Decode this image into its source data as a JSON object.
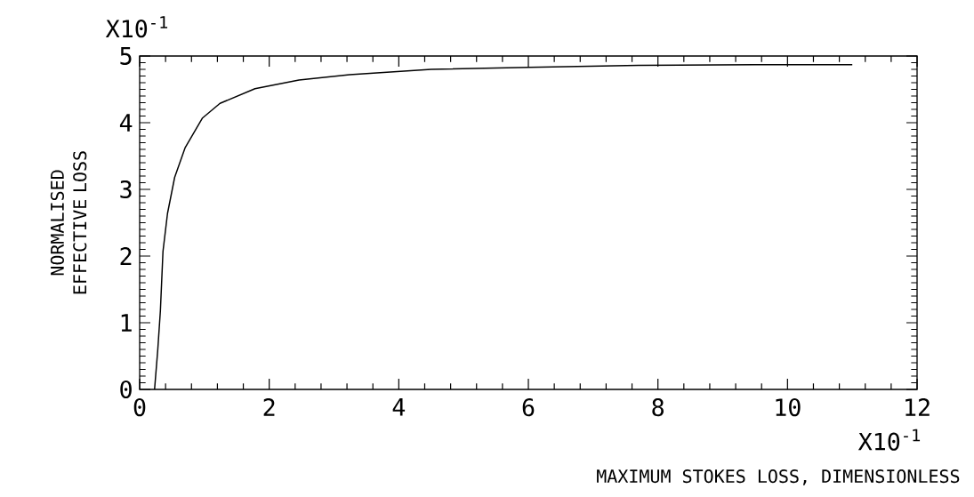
{
  "chart_data": {
    "type": "line",
    "xlabel": "MAXIMUM STOKES LOSS, DIMENSIONLESS",
    "ylabel": "NORMALISED EFFECTIVE LOSS",
    "annotations": [
      "X10$^{-1}$",
      "X10$^{-1}$"
    ],
    "series": [
      {
        "color": "#000000",
        "x": [
          0.23,
          0.28,
          0.32,
          0.36,
          0.43,
          0.54,
          0.7,
          0.97,
          1.24,
          1.78,
          2.46,
          3.24,
          4.5,
          6.0,
          7.7,
          9.5,
          11.0
        ],
        "values": [
          0,
          0.6,
          1.18,
          2.07,
          2.64,
          3.18,
          3.62,
          4.07,
          4.29,
          4.51,
          4.64,
          4.72,
          4.8,
          4.83,
          4.86,
          4.87,
          4.87
        ]
      }
    ],
    "xlim": [
      0,
      12
    ],
    "ylim": [
      0,
      5
    ],
    "xticks": [
      0,
      2,
      4,
      6,
      8,
      10,
      12
    ],
    "yticks": [
      0,
      1,
      2,
      3,
      4,
      5
    ],
    "grid": false,
    "marker": "none",
    "line_style": "solid"
  }
}
